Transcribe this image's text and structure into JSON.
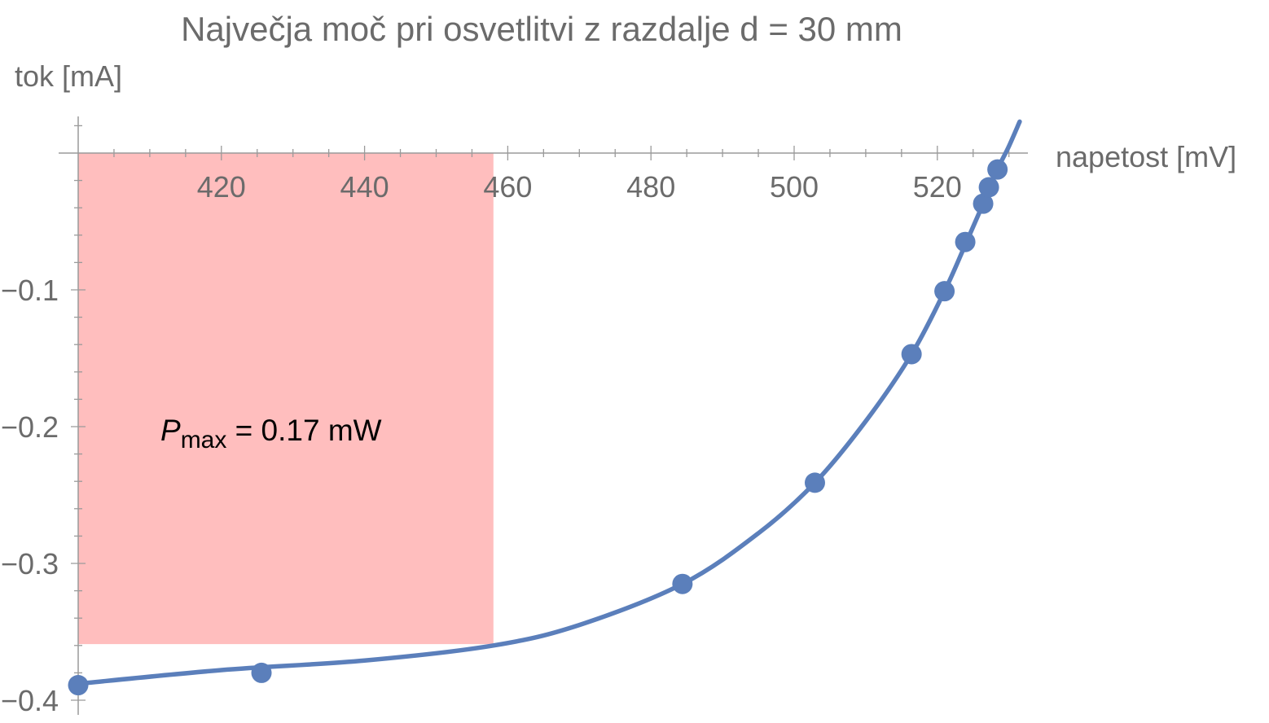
{
  "chart_data": {
    "type": "scatter",
    "title": "Največja moč pri osvetlitvi z razdalje d = 30 mm",
    "xlabel": "napetost [mV]",
    "ylabel": "tok [mA]",
    "xlim": [
      400,
      532
    ],
    "ylim": [
      -0.41,
      0.025
    ],
    "x_ticks": [
      420,
      440,
      460,
      480,
      500,
      520
    ],
    "y_ticks": [
      -0.1,
      -0.2,
      -0.3,
      -0.4
    ],
    "x_tick_labels": [
      "420",
      "440",
      "460",
      "480",
      "500",
      "520"
    ],
    "y_tick_labels": [
      "−0.1",
      "−0.2",
      "−0.3",
      "−0.4"
    ],
    "series": [
      {
        "kind": "points",
        "color": "#5b7fbb",
        "x": [
          400.0,
          425.6,
          484.4,
          502.9,
          516.4,
          521.0,
          523.9,
          526.4,
          527.2,
          528.4
        ],
        "y": [
          -0.389,
          -0.38,
          -0.315,
          -0.241,
          -0.147,
          -0.101,
          -0.065,
          -0.037,
          -0.025,
          -0.012
        ]
      },
      {
        "kind": "fit-curve",
        "color": "#5b7fbb",
        "x": [
          400,
          420,
          440,
          458,
          470,
          484.4,
          495,
          502.9,
          510,
          516.4,
          521.0,
          523.9,
          526.4,
          528.4,
          530.0,
          531.5
        ],
        "y": [
          -0.388,
          -0.378,
          -0.371,
          -0.36,
          -0.345,
          -0.315,
          -0.278,
          -0.241,
          -0.196,
          -0.147,
          -0.101,
          -0.067,
          -0.037,
          -0.012,
          0.005,
          0.023
        ]
      }
    ],
    "max_power_rectangle": {
      "x_range": [
        400,
        458
      ],
      "y_range": [
        -0.359,
        0
      ],
      "color": "#ffbebe"
    },
    "annotation": {
      "symbol": "P",
      "subscript": "max",
      "text": " = 0.17 mW"
    },
    "grid": false
  }
}
